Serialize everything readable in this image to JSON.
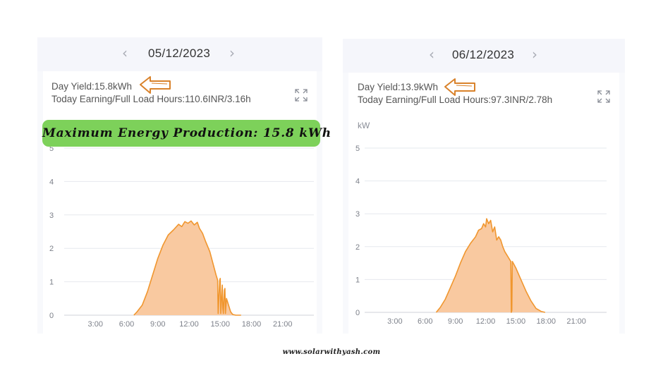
{
  "left_panel": {
    "date": "05/12/2023",
    "day_yield": "Day Yield:15.8kWh",
    "earning_line": "Today Earning/Full Load Hours:110.6INR/3.16h",
    "banner": "Maximum Energy Production: 15.8 kWh"
  },
  "right_panel": {
    "date": "06/12/2023",
    "day_yield": "Day Yield:13.9kWh",
    "earning_line": "Today Earning/Full Load Hours:97.3INR/2.78h",
    "unit_label": "kW"
  },
  "footer": {
    "text": "www.solarwithyash.com"
  },
  "colors": {
    "fill": "#f9c9a0",
    "stroke": "#f0962e",
    "grid": "#e6e8ee",
    "axis": "#cfd2d9",
    "arrow": "#d9822b",
    "banner": "#7dd15a"
  },
  "chart_data": [
    {
      "type": "area",
      "title": "",
      "xlabel": "",
      "ylabel": "",
      "x_ticks": [
        "3:00",
        "6:00",
        "9:00",
        "12:00",
        "15:00",
        "18:00",
        "21:00"
      ],
      "y_ticks": [
        "0",
        "1",
        "2",
        "3",
        "4",
        "5"
      ],
      "xlim": [
        0,
        24
      ],
      "ylim": [
        0,
        5
      ],
      "grid": true,
      "legend": "none",
      "series": [
        {
          "x": [
            6.7,
            7.0,
            7.5,
            8.0,
            8.5,
            9.0,
            9.5,
            10.0,
            10.5,
            11.0,
            11.3,
            11.6,
            11.9,
            12.2,
            12.5,
            12.8,
            13.0,
            13.3,
            13.6,
            14.0,
            14.3,
            14.6,
            14.75,
            14.8,
            14.95,
            15.0,
            15.05,
            15.2,
            15.25,
            15.3,
            15.4,
            15.45,
            15.5,
            15.6,
            15.8,
            16.0,
            16.2,
            16.5,
            17.0
          ],
          "y": [
            0.0,
            0.1,
            0.3,
            0.7,
            1.2,
            1.7,
            2.1,
            2.4,
            2.55,
            2.72,
            2.65,
            2.8,
            2.75,
            2.82,
            2.7,
            2.78,
            2.6,
            2.45,
            2.2,
            1.9,
            1.55,
            1.2,
            1.05,
            0.05,
            1.05,
            1.1,
            0.05,
            0.9,
            0.2,
            0.05,
            0.75,
            0.8,
            0.05,
            0.5,
            0.3,
            0.1,
            0.02,
            0.0,
            0.0
          ]
        }
      ]
    },
    {
      "type": "area",
      "title": "",
      "xlabel": "",
      "ylabel": "kW",
      "x_ticks": [
        "3:00",
        "6:00",
        "9:00",
        "12:00",
        "15:00",
        "18:00",
        "21:00"
      ],
      "y_ticks": [
        "0",
        "1",
        "2",
        "3",
        "4",
        "5"
      ],
      "xlim": [
        0,
        24
      ],
      "ylim": [
        0,
        5
      ],
      "grid": true,
      "legend": "none",
      "series": [
        {
          "x": [
            7.1,
            7.5,
            8.0,
            8.5,
            9.0,
            9.5,
            10.0,
            10.5,
            11.0,
            11.3,
            11.6,
            11.8,
            12.0,
            12.1,
            12.3,
            12.5,
            12.7,
            12.9,
            13.1,
            13.3,
            13.5,
            13.7,
            13.9,
            14.1,
            14.3,
            14.5,
            14.55,
            14.6,
            14.65,
            15.0,
            15.5,
            16.0,
            16.5,
            17.0,
            17.5,
            17.9
          ],
          "y": [
            0.0,
            0.15,
            0.4,
            0.75,
            1.1,
            1.5,
            1.85,
            2.1,
            2.3,
            2.5,
            2.55,
            2.7,
            2.6,
            2.85,
            2.7,
            2.8,
            2.45,
            2.6,
            2.2,
            2.3,
            2.2,
            2.0,
            1.85,
            1.75,
            1.65,
            1.55,
            0.0,
            0.05,
            1.55,
            1.35,
            1.0,
            0.65,
            0.35,
            0.12,
            0.03,
            0.0
          ]
        }
      ]
    }
  ]
}
